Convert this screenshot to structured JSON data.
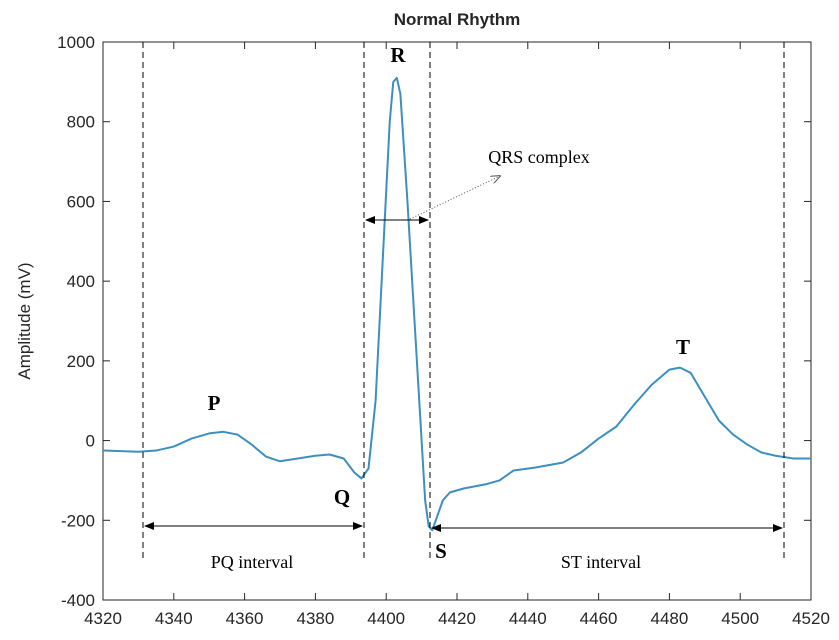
{
  "chart_data": {
    "type": "line",
    "title": "Normal Rhythm",
    "y_label": "Amplitude (mV)",
    "x": [
      4320,
      4330,
      4335,
      4340,
      4345,
      4350,
      4354,
      4358,
      4362,
      4366,
      4370,
      4375,
      4380,
      4384,
      4388,
      4391,
      4393,
      4395,
      4397,
      4399,
      4401,
      4402,
      4403,
      4404,
      4406,
      4408,
      4410,
      4411,
      4412,
      4413,
      4414,
      4416,
      4418,
      4422,
      4428,
      4432,
      4436,
      4442,
      4450,
      4455,
      4460,
      4465,
      4470,
      4475,
      4480,
      4483,
      4486,
      4490,
      4494,
      4498,
      4502,
      4506,
      4510,
      4515,
      4520
    ],
    "series": [
      {
        "color": "#3d8fc0",
        "values": [
          -25,
          -28,
          -25,
          -15,
          5,
          18,
          22,
          15,
          -10,
          -40,
          -52,
          -45,
          -38,
          -35,
          -45,
          -80,
          -95,
          -70,
          100,
          450,
          800,
          900,
          910,
          870,
          600,
          300,
          0,
          -150,
          -215,
          -225,
          -200,
          -150,
          -130,
          -120,
          -110,
          -100,
          -75,
          -68,
          -55,
          -30,
          5,
          35,
          90,
          140,
          178,
          183,
          170,
          110,
          50,
          15,
          -10,
          -30,
          -38,
          -45,
          -45
        ]
      }
    ],
    "xlim": [
      4320,
      4520
    ],
    "xticks": [
      4320,
      4340,
      4360,
      4380,
      4400,
      4420,
      4440,
      4460,
      4480,
      4500,
      4520
    ],
    "ylim": [
      -400,
      1000
    ],
    "yticks": [
      -400,
      -200,
      0,
      200,
      400,
      600,
      800,
      1000
    ],
    "annotations": [
      "R",
      "P",
      "Q",
      "S",
      "T",
      "QRS complex",
      "PQ interval",
      "ST interval"
    ]
  }
}
